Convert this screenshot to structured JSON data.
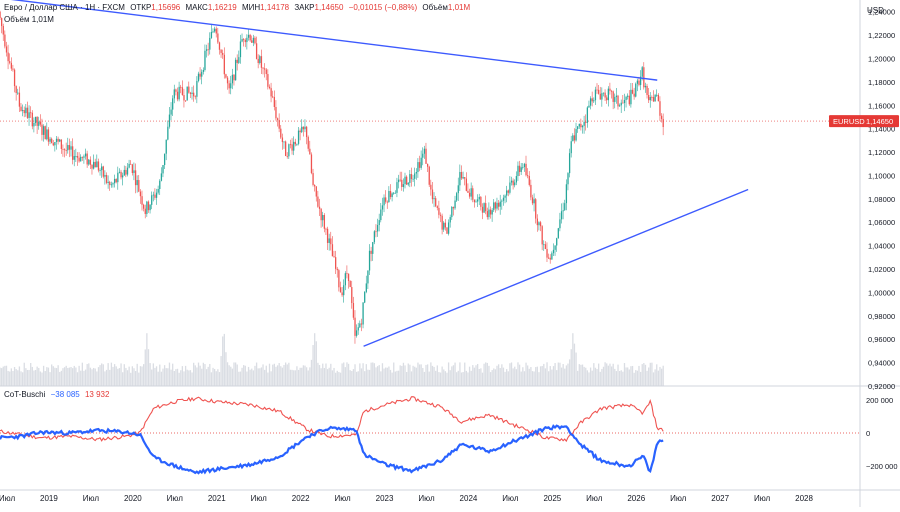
{
  "header": {
    "symbol_line": "Евро / Доллар США · 1Н · FXCM",
    "open_label": "ОТКР",
    "open_value": "1,15696",
    "high_label": "МАКС",
    "high_value": "1,16219",
    "low_label": "МИН",
    "low_value": "1,14178",
    "close_label": "ЗАКР",
    "close_value": "1,14650",
    "change_value": "−0,01015 (−0,88%)",
    "volume_label": "Объём",
    "volume_value": "1,01M",
    "volume_line": "Объём  1,01M"
  },
  "price_axis": {
    "currency": "USD",
    "ticks": [
      "1,24000",
      "1,22000",
      "1,20000",
      "1,18000",
      "1,16000",
      "1,14000",
      "1,12000",
      "1,10000",
      "1,08000",
      "1,06000",
      "1,04000",
      "1,02000",
      "1,00000",
      "0,98000",
      "0,96000",
      "0,94000",
      "0,92000"
    ],
    "price_badge_symbol": "EURUSD",
    "price_badge_value": "1,14650",
    "badge_color": "#e53935"
  },
  "indicator": {
    "title": "CoT-Buschi",
    "value_blue": "−38 085",
    "value_red": "13 932",
    "ticks": [
      "200 000",
      "0",
      "−200 000"
    ],
    "blue_color": "#2962ff",
    "red_color": "#ef5350"
  },
  "time_axis": {
    "labels": [
      "Июл",
      "2019",
      "Июл",
      "2020",
      "Июл",
      "2021",
      "Июл",
      "2022",
      "Июл",
      "2023",
      "Июл",
      "2024",
      "Июл",
      "2025",
      "Июл",
      "2026",
      "Июл",
      "2027",
      "Июл",
      "2028"
    ]
  },
  "chart_data": {
    "type": "candlestick",
    "symbol": "EURUSD",
    "interval": "1W",
    "y_scale": "linear",
    "ylim": [
      0.92,
      1.25
    ],
    "x_range": [
      "2018-06",
      "2028-09"
    ],
    "last_price": 1.1465,
    "bull_color": "#26a69a",
    "bear_color": "#ef5350",
    "price_path": [
      [
        "2018-06",
        1.24
      ],
      [
        "2018-09",
        1.16
      ],
      [
        "2018-12",
        1.14
      ],
      [
        "2019-04",
        1.12
      ],
      [
        "2019-08",
        1.11
      ],
      [
        "2019-10",
        1.09
      ],
      [
        "2020-01",
        1.11
      ],
      [
        "2020-03",
        1.07
      ],
      [
        "2020-05",
        1.09
      ],
      [
        "2020-07",
        1.17
      ],
      [
        "2020-10",
        1.17
      ],
      [
        "2020-12",
        1.21
      ],
      [
        "2021-01",
        1.23
      ],
      [
        "2021-03",
        1.17
      ],
      [
        "2021-05",
        1.22
      ],
      [
        "2021-06",
        1.22
      ],
      [
        "2021-09",
        1.17
      ],
      [
        "2021-11",
        1.12
      ],
      [
        "2022-02",
        1.14
      ],
      [
        "2022-03",
        1.09
      ],
      [
        "2022-05",
        1.05
      ],
      [
        "2022-07",
        1.0
      ],
      [
        "2022-08",
        1.02
      ],
      [
        "2022-09",
        0.96
      ],
      [
        "2022-10",
        0.98
      ],
      [
        "2022-11",
        1.03
      ],
      [
        "2023-01",
        1.08
      ],
      [
        "2023-05",
        1.1
      ],
      [
        "2023-07",
        1.12
      ],
      [
        "2023-08",
        1.08
      ],
      [
        "2023-10",
        1.05
      ],
      [
        "2023-12",
        1.1
      ],
      [
        "2024-02",
        1.08
      ],
      [
        "2024-04",
        1.07
      ],
      [
        "2024-06",
        1.08
      ],
      [
        "2024-09",
        1.11
      ],
      [
        "2024-10",
        1.09
      ],
      [
        "2024-12",
        1.04
      ],
      [
        "2025-01",
        1.03
      ],
      [
        "2025-03",
        1.08
      ],
      [
        "2025-04",
        1.13
      ],
      [
        "2025-06",
        1.15
      ],
      [
        "2025-07",
        1.17
      ],
      [
        "2025-09",
        1.17
      ],
      [
        "2025-11",
        1.16
      ],
      [
        "2026-01",
        1.17
      ],
      [
        "2026-02",
        1.19
      ],
      [
        "2026-03",
        1.16
      ],
      [
        "2026-04",
        1.17
      ],
      [
        "2026-05",
        1.1465
      ]
    ],
    "trendlines": [
      {
        "from": [
          "2018-07",
          1.251
        ],
        "to": [
          "2026-04",
          1.1815
        ]
      },
      {
        "from": [
          "2022-10",
          0.954
        ],
        "to": [
          "2027-05",
          1.088
        ]
      }
    ],
    "volume_spikes": [
      "2020-03",
      "2021-02",
      "2022-03",
      "2025-04"
    ],
    "indicator_series": {
      "ylim": [
        -300000,
        300000
      ],
      "blue_path": [
        [
          "2018-06",
          -30000
        ],
        [
          "2018-09",
          -20000
        ],
        [
          "2018-12",
          5000
        ],
        [
          "2019-04",
          0
        ],
        [
          "2019-08",
          15000
        ],
        [
          "2019-12",
          5000
        ],
        [
          "2020-02",
          -10000
        ],
        [
          "2020-04",
          -150000
        ],
        [
          "2020-07",
          -200000
        ],
        [
          "2020-10",
          -240000
        ],
        [
          "2021-01",
          -220000
        ],
        [
          "2021-06",
          -190000
        ],
        [
          "2021-10",
          -140000
        ],
        [
          "2022-02",
          -20000
        ],
        [
          "2022-05",
          30000
        ],
        [
          "2022-09",
          20000
        ],
        [
          "2022-10",
          -130000
        ],
        [
          "2023-01",
          -190000
        ],
        [
          "2023-05",
          -230000
        ],
        [
          "2023-09",
          -170000
        ],
        [
          "2023-12",
          -70000
        ],
        [
          "2024-04",
          -110000
        ],
        [
          "2024-08",
          -40000
        ],
        [
          "2024-10",
          -10000
        ],
        [
          "2024-12",
          30000
        ],
        [
          "2025-03",
          40000
        ],
        [
          "2025-05",
          -70000
        ],
        [
          "2025-08",
          -170000
        ],
        [
          "2025-12",
          -200000
        ],
        [
          "2026-02",
          -140000
        ],
        [
          "2026-03",
          -240000
        ],
        [
          "2026-04",
          -60000
        ],
        [
          "2026-05",
          -38085
        ]
      ],
      "red_path": [
        [
          "2018-06",
          10000
        ],
        [
          "2018-09",
          -10000
        ],
        [
          "2018-12",
          -30000
        ],
        [
          "2019-04",
          -20000
        ],
        [
          "2019-08",
          -40000
        ],
        [
          "2019-12",
          -20000
        ],
        [
          "2020-02",
          0
        ],
        [
          "2020-04",
          150000
        ],
        [
          "2020-07",
          190000
        ],
        [
          "2020-10",
          210000
        ],
        [
          "2021-01",
          190000
        ],
        [
          "2021-06",
          170000
        ],
        [
          "2021-10",
          130000
        ],
        [
          "2022-02",
          20000
        ],
        [
          "2022-05",
          -20000
        ],
        [
          "2022-09",
          -10000
        ],
        [
          "2022-10",
          130000
        ],
        [
          "2023-01",
          170000
        ],
        [
          "2023-05",
          210000
        ],
        [
          "2023-09",
          160000
        ],
        [
          "2023-12",
          70000
        ],
        [
          "2024-04",
          110000
        ],
        [
          "2024-08",
          40000
        ],
        [
          "2024-10",
          10000
        ],
        [
          "2024-12",
          -30000
        ],
        [
          "2025-03",
          -40000
        ],
        [
          "2025-05",
          60000
        ],
        [
          "2025-08",
          150000
        ],
        [
          "2025-12",
          170000
        ],
        [
          "2026-02",
          120000
        ],
        [
          "2026-03",
          190000
        ],
        [
          "2026-04",
          30000
        ],
        [
          "2026-05",
          13932
        ]
      ]
    }
  }
}
